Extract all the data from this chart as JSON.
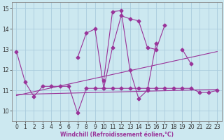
{
  "xlabel": "Windchill (Refroidissement éolien,°C)",
  "background_color": "#cce8f0",
  "grid_color": "#aaccdd",
  "line_color": "#993399",
  "xlim": [
    -0.5,
    23.5
  ],
  "ylim": [
    9.5,
    15.3
  ],
  "xticks": [
    0,
    1,
    2,
    3,
    4,
    5,
    6,
    7,
    8,
    9,
    10,
    11,
    12,
    13,
    14,
    15,
    16,
    17,
    18,
    19,
    20,
    21,
    22,
    23
  ],
  "yticks": [
    10,
    11,
    12,
    13,
    14,
    15
  ],
  "series0_x": [
    0,
    1,
    2,
    3,
    4,
    5,
    6,
    7,
    8,
    9,
    10,
    11,
    12,
    13,
    14,
    15,
    16,
    17,
    18,
    19,
    20,
    21,
    22,
    23
  ],
  "series0_y": [
    12.9,
    11.4,
    10.7,
    11.2,
    11.2,
    11.2,
    11.2,
    9.9,
    11.1,
    11.1,
    11.1,
    11.1,
    11.1,
    11.1,
    11.1,
    11.1,
    11.1,
    11.1,
    11.1,
    11.1,
    11.1,
    10.9,
    10.9,
    11.0
  ],
  "series1_segments": [
    {
      "x": [
        7,
        8,
        9,
        10,
        11,
        12,
        13,
        14,
        15,
        16,
        17
      ],
      "y": [
        12.6,
        13.8,
        14.0,
        11.1,
        13.1,
        14.65,
        14.5,
        14.4,
        13.1,
        13.0,
        14.2
      ]
    },
    {
      "x": [
        19,
        20
      ],
      "y": [
        13.0,
        12.3
      ]
    }
  ],
  "series2_segments": [
    {
      "x": [
        10,
        11,
        12,
        13,
        14,
        15,
        16
      ],
      "y": [
        11.5,
        14.85,
        14.9,
        12.0,
        10.6,
        11.0,
        13.3
      ]
    }
  ],
  "trend_lines": [
    {
      "x": [
        0,
        23
      ],
      "y": [
        10.8,
        11.05
      ]
    },
    {
      "x": [
        0,
        23
      ],
      "y": [
        10.75,
        12.9
      ]
    }
  ],
  "xlabel_fontsize": 5.5,
  "tick_fontsize": 5.5
}
